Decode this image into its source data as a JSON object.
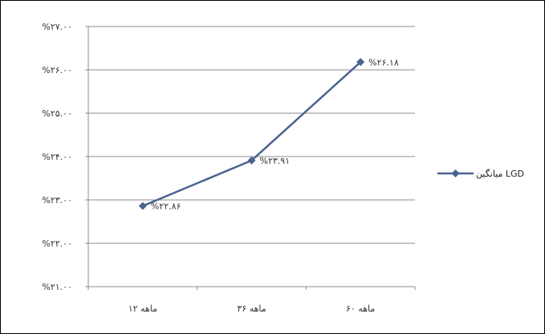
{
  "chart_data": {
    "type": "line",
    "title": "",
    "xlabel": "",
    "ylabel": "",
    "categories": [
      "۱۲ ماهه",
      "۳۶ ماهه",
      "۶۰ ماهه"
    ],
    "series": [
      {
        "name": "میانگین LGD",
        "values": [
          22.86,
          23.91,
          26.18
        ],
        "data_labels": [
          "%۲۲.۸۶",
          "%۲۳.۹۱",
          "%۲۶.۱۸"
        ],
        "color": "#4a6391"
      }
    ],
    "ylim": [
      21,
      27
    ],
    "yticks": [
      21,
      22,
      23,
      24,
      25,
      26,
      27
    ],
    "ytick_labels": [
      "%۲۱.۰۰",
      "%۲۲.۰۰",
      "%۲۳.۰۰",
      "%۲۴.۰۰",
      "%۲۵.۰۰",
      "%۲۶.۰۰",
      "%۲۷.۰۰"
    ],
    "grid": true,
    "legend": "right",
    "marker": "diamond"
  }
}
